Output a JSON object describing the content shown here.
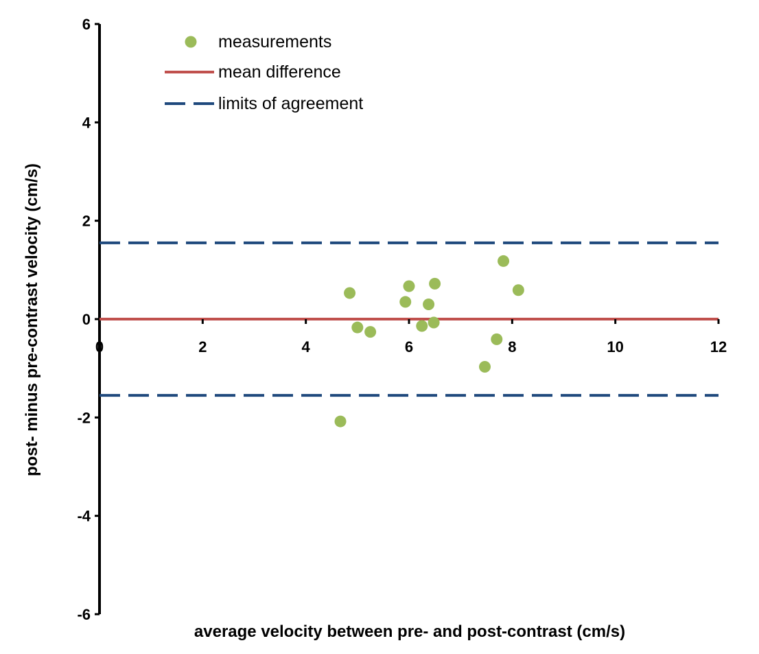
{
  "chart_data": {
    "type": "scatter",
    "title": "",
    "xlabel": "average velocity between pre- and post-contrast (cm/s)",
    "ylabel": "post- minus pre-contrast velocity (cm/s)",
    "xlim": [
      0,
      12
    ],
    "ylim": [
      -6,
      6
    ],
    "x_ticks": [
      0,
      2,
      4,
      6,
      8,
      10,
      12
    ],
    "y_ticks": [
      6,
      4,
      2,
      0,
      -2,
      -4,
      -6
    ],
    "x_tick_labels": [
      "0",
      "2",
      "4",
      "6",
      "8",
      "10",
      "12"
    ],
    "y_tick_labels": [
      "6",
      "4",
      "2",
      "0",
      "-2",
      "-4",
      "-6"
    ],
    "grid": false,
    "legend_position": "top-left",
    "series": [
      {
        "name": "measurements",
        "kind": "scatter",
        "color": "#9bbb59",
        "points": [
          {
            "x": 4.85,
            "y": 0.53
          },
          {
            "x": 4.67,
            "y": -2.08
          },
          {
            "x": 5.0,
            "y": -0.17
          },
          {
            "x": 5.25,
            "y": -0.26
          },
          {
            "x": 5.93,
            "y": 0.35
          },
          {
            "x": 6.0,
            "y": 0.67
          },
          {
            "x": 6.25,
            "y": -0.14
          },
          {
            "x": 6.38,
            "y": 0.3
          },
          {
            "x": 6.48,
            "y": -0.07
          },
          {
            "x": 6.5,
            "y": 0.72
          },
          {
            "x": 7.47,
            "y": -0.97
          },
          {
            "x": 7.7,
            "y": -0.41
          },
          {
            "x": 7.83,
            "y": 1.18
          },
          {
            "x": 8.12,
            "y": 0.59
          }
        ]
      },
      {
        "name": "mean difference",
        "kind": "hline",
        "color": "#c0504d",
        "style": "solid",
        "y": 0
      },
      {
        "name": "limits of agreement",
        "kind": "hline",
        "color": "#1f497d",
        "style": "dashed",
        "y_values": [
          1.55,
          -1.55
        ]
      }
    ]
  }
}
